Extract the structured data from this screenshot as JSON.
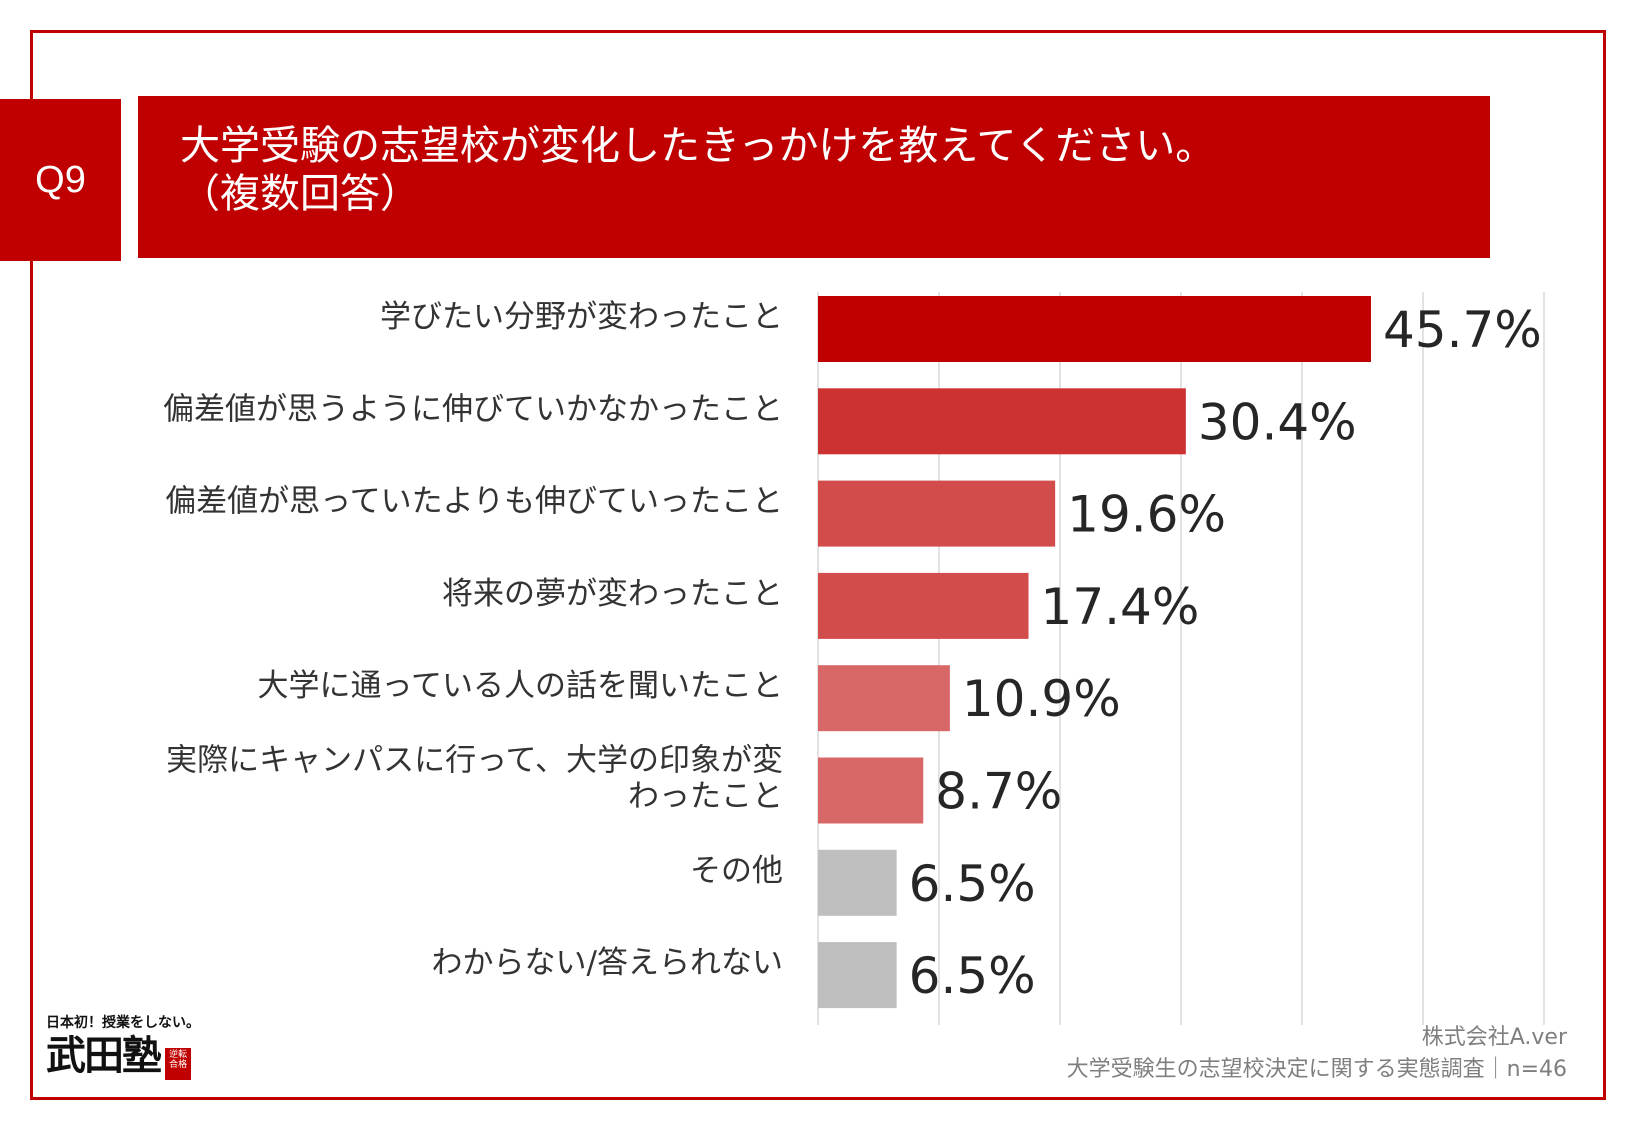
{
  "header": {
    "question_number": "Q9",
    "title_line1": "大学受験の志望校が変化したきっかけを教えてください。",
    "title_line2": "（複数回答）"
  },
  "colors": {
    "brand_red": "#c00000",
    "gray_bar": "#bfbfbf"
  },
  "chart_data": {
    "type": "bar",
    "orientation": "horizontal",
    "title": "大学受験の志望校が変化したきっかけを教えてください。（複数回答）",
    "categories": [
      [
        "学びたい分野が変わったこと"
      ],
      [
        "偏差値が思うように伸びていかなかったこと"
      ],
      [
        "偏差値が思っていたよりも伸びていったこと"
      ],
      [
        "将来の夢が変わったこと"
      ],
      [
        "大学に通っている人の話を聞いたこと"
      ],
      [
        "実際にキャンパスに行って、大学の印象が変",
        "わったこと"
      ],
      [
        "その他"
      ],
      [
        "わからない/答えられない"
      ]
    ],
    "values": [
      45.7,
      30.4,
      19.6,
      17.4,
      10.9,
      8.7,
      6.5,
      6.5
    ],
    "value_labels": [
      "45.7%",
      "30.4%",
      "19.6%",
      "17.4%",
      "10.9%",
      "8.7%",
      "6.5%",
      "6.5%"
    ],
    "bar_colors": [
      "#c00000",
      "#cd3232",
      "#d24c4c",
      "#d24c4c",
      "#d86868",
      "#d86868",
      "#bfbfbf",
      "#bfbfbf"
    ],
    "xlim": [
      0,
      60
    ],
    "grid": true,
    "unit": "%"
  },
  "source": {
    "company": "株式会社A.ver",
    "survey": "大学受験生の志望校決定に関する実態調査｜n=46"
  },
  "logo": {
    "tagline": "日本初！授業をしない。",
    "brand": "武田塾",
    "stamp": "逆転合格"
  }
}
